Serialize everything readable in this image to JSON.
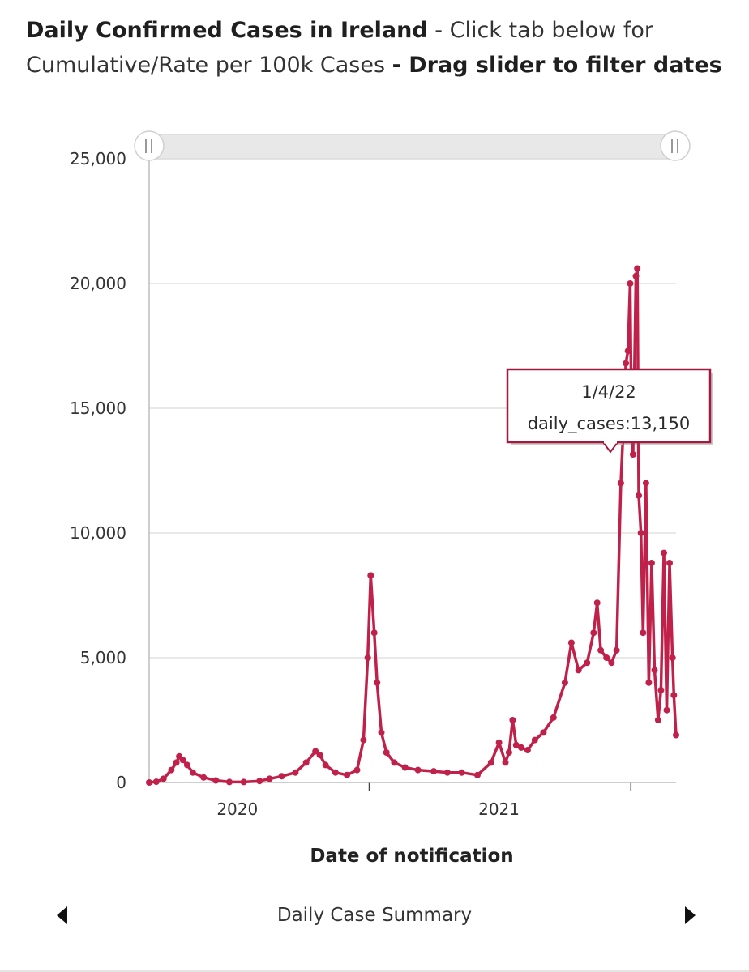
{
  "header": {
    "title_bold": "Daily Confirmed Cases in Ireland",
    "title_normal": " - Click tab below for Cumulative/Rate per 100k Cases ",
    "title_bold2": "- Drag slider to filter dates"
  },
  "tooltip": {
    "date": "1/4/22",
    "text": "daily_cases:13,150"
  },
  "tabs": {
    "current_label": "Daily Case Summary"
  },
  "colors": {
    "series": "#c0214a",
    "grid": "#e2e2e2",
    "axis": "#bdbdbd"
  },
  "chart_data": {
    "type": "line",
    "title": "",
    "xlabel": "Date of notification",
    "ylabel": "",
    "ylim": [
      0,
      25000
    ],
    "yticks": [
      "0",
      "5,000",
      "10,000",
      "15,000",
      "20,000",
      "25,000"
    ],
    "xticks": [
      "2020",
      "2021"
    ],
    "x_range": [
      "2020-02-29",
      "2022-03-05"
    ],
    "series": [
      {
        "name": "daily_cases",
        "x": [
          "2020-02-29",
          "2020-03-10",
          "2020-03-20",
          "2020-03-31",
          "2020-04-07",
          "2020-04-11",
          "2020-04-16",
          "2020-04-22",
          "2020-04-30",
          "2020-05-15",
          "2020-06-01",
          "2020-06-20",
          "2020-07-10",
          "2020-08-01",
          "2020-08-15",
          "2020-09-01",
          "2020-09-20",
          "2020-10-05",
          "2020-10-18",
          "2020-10-24",
          "2020-11-01",
          "2020-11-15",
          "2020-12-01",
          "2020-12-15",
          "2020-12-24",
          "2020-12-30",
          "2021-01-03",
          "2021-01-08",
          "2021-01-12",
          "2021-01-18",
          "2021-01-25",
          "2021-02-05",
          "2021-02-20",
          "2021-03-10",
          "2021-04-01",
          "2021-04-20",
          "2021-05-10",
          "2021-06-01",
          "2021-06-20",
          "2021-07-01",
          "2021-07-10",
          "2021-07-15",
          "2021-07-20",
          "2021-07-25",
          "2021-08-01",
          "2021-08-10",
          "2021-08-20",
          "2021-09-01",
          "2021-09-15",
          "2021-10-01",
          "2021-10-10",
          "2021-10-20",
          "2021-11-01",
          "2021-11-10",
          "2021-11-15",
          "2021-11-20",
          "2021-11-28",
          "2021-12-05",
          "2021-12-12",
          "2021-12-18",
          "2021-12-22",
          "2021-12-25",
          "2021-12-28",
          "2021-12-31",
          "2022-01-02",
          "2022-01-04",
          "2022-01-06",
          "2022-01-08",
          "2022-01-10",
          "2022-01-12",
          "2022-01-15",
          "2022-01-18",
          "2022-01-22",
          "2022-01-26",
          "2022-01-30",
          "2022-02-03",
          "2022-02-08",
          "2022-02-12",
          "2022-02-16",
          "2022-02-20",
          "2022-02-24",
          "2022-02-28",
          "2022-03-02",
          "2022-03-05"
        ],
        "values": [
          0,
          30,
          150,
          500,
          800,
          1050,
          900,
          700,
          400,
          200,
          80,
          20,
          20,
          60,
          150,
          250,
          400,
          800,
          1250,
          1100,
          700,
          400,
          300,
          500,
          1700,
          5000,
          8300,
          6000,
          4000,
          2000,
          1200,
          800,
          600,
          500,
          450,
          400,
          400,
          300,
          800,
          1600,
          800,
          1200,
          2500,
          1500,
          1400,
          1300,
          1700,
          2000,
          2600,
          4000,
          5600,
          4500,
          4800,
          6000,
          7200,
          5300,
          5000,
          4800,
          5300,
          12000,
          14500,
          16800,
          17300,
          20000,
          13900,
          13150,
          16500,
          20300,
          20600,
          11500,
          10000,
          6000,
          12000,
          4000,
          8800,
          4500,
          2500,
          3700,
          9200,
          2900,
          8800,
          5000,
          3500,
          1900
        ]
      }
    ]
  }
}
